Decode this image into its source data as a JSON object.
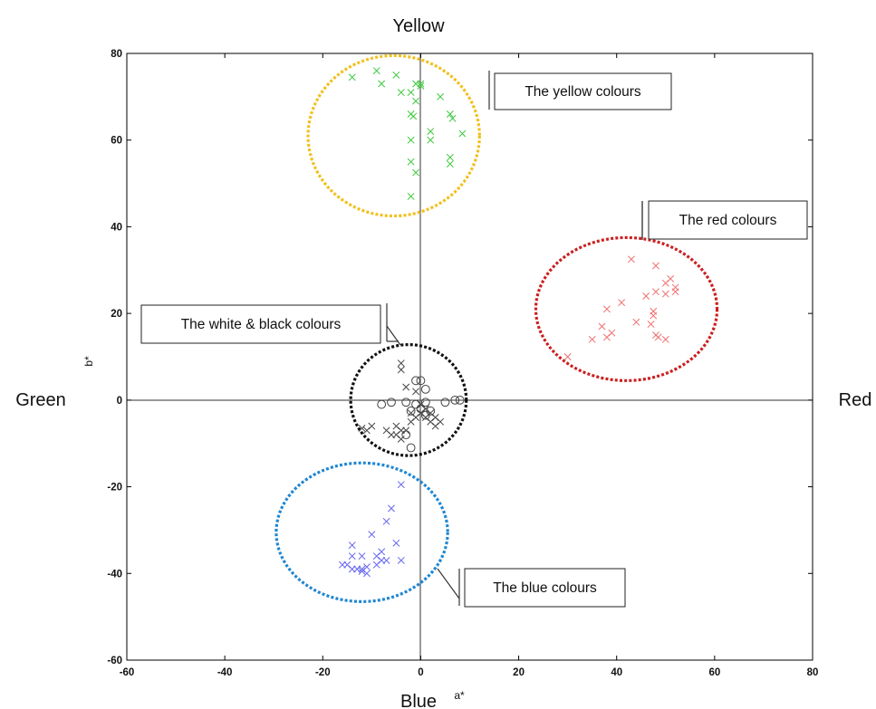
{
  "chart_data": {
    "type": "scatter",
    "xlabel": "a*",
    "ylabel": "b*",
    "xlim": [
      -60,
      80
    ],
    "ylim": [
      -60,
      80
    ],
    "x_ticks": [
      -60,
      -40,
      -20,
      0,
      20,
      40,
      60,
      80
    ],
    "y_ticks": [
      -60,
      -40,
      -20,
      0,
      20,
      40,
      60,
      80
    ],
    "grid": false,
    "color_direction_labels": {
      "top": "Yellow",
      "bottom": "Blue",
      "left": "Green",
      "right": "Red"
    },
    "series": [
      {
        "marker": "x",
        "color": "#3cc83c",
        "points": [
          [
            -14,
            74.5
          ],
          [
            -9,
            76
          ],
          [
            -8,
            73
          ],
          [
            -5,
            75
          ],
          [
            -4,
            71
          ],
          [
            -2,
            71
          ],
          [
            -1,
            73
          ],
          [
            0,
            72.5
          ],
          [
            0,
            73
          ],
          [
            -1,
            69
          ],
          [
            -2,
            66
          ],
          [
            -1.5,
            65.5
          ],
          [
            -2,
            60
          ],
          [
            6,
            66
          ],
          [
            6.5,
            65
          ],
          [
            4,
            70
          ],
          [
            2,
            62
          ],
          [
            2,
            60
          ],
          [
            8.5,
            61.5
          ],
          [
            6,
            56
          ],
          [
            6,
            54.5
          ],
          [
            -2,
            55
          ],
          [
            -1,
            52.5
          ],
          [
            -2,
            47
          ]
        ]
      },
      {
        "marker": "x",
        "color": "#f07070",
        "points": [
          [
            43,
            32.5
          ],
          [
            48,
            31
          ],
          [
            51,
            28
          ],
          [
            52,
            26
          ],
          [
            52,
            25
          ],
          [
            50,
            27
          ],
          [
            48,
            25
          ],
          [
            46,
            24
          ],
          [
            50,
            24.5
          ],
          [
            41,
            22.5
          ],
          [
            38,
            21
          ],
          [
            47.5,
            20.5
          ],
          [
            47.5,
            19.5
          ],
          [
            44,
            18
          ],
          [
            47,
            17.5
          ],
          [
            37,
            17
          ],
          [
            39,
            15.5
          ],
          [
            48,
            15
          ],
          [
            48.5,
            14.5
          ],
          [
            50,
            14
          ],
          [
            35,
            14
          ],
          [
            38,
            14.5
          ],
          [
            30,
            10
          ]
        ]
      },
      {
        "marker": "x",
        "color": "#6666ee",
        "points": [
          [
            -4,
            -19.5
          ],
          [
            -6,
            -25
          ],
          [
            -7,
            -28
          ],
          [
            -10,
            -31
          ],
          [
            -5,
            -33
          ],
          [
            -14,
            -33.5
          ],
          [
            -14,
            -36
          ],
          [
            -12,
            -36
          ],
          [
            -8,
            -35
          ],
          [
            -9,
            -36
          ],
          [
            -8,
            -37
          ],
          [
            -9,
            -38
          ],
          [
            -7,
            -37
          ],
          [
            -4,
            -37
          ],
          [
            -11,
            -38.5
          ],
          [
            -12,
            -39
          ],
          [
            -13,
            -39
          ],
          [
            -14,
            -39
          ],
          [
            -15,
            -38
          ],
          [
            -11,
            -40
          ],
          [
            -12,
            -39.5
          ],
          [
            -16,
            -38
          ]
        ]
      },
      {
        "marker": "x",
        "color": "#444444",
        "points": [
          [
            -4,
            8.5
          ],
          [
            -4,
            7
          ],
          [
            -3,
            3
          ],
          [
            -1,
            2
          ],
          [
            -5,
            -6
          ],
          [
            -4,
            -7
          ],
          [
            -5,
            -8
          ],
          [
            -4,
            -9
          ],
          [
            -3,
            -7
          ],
          [
            -2,
            -5
          ],
          [
            -1,
            -4
          ],
          [
            0,
            -3
          ],
          [
            1,
            -2
          ],
          [
            2,
            -3
          ],
          [
            3,
            -4
          ],
          [
            4,
            -5
          ],
          [
            3,
            -6
          ],
          [
            -10,
            -6
          ],
          [
            -12,
            -6.5
          ],
          [
            -7,
            -7
          ],
          [
            -6,
            -8
          ],
          [
            -11,
            -7
          ],
          [
            0,
            -1
          ],
          [
            1,
            -4
          ],
          [
            2,
            -5
          ],
          [
            -2,
            -3
          ]
        ]
      },
      {
        "marker": "o",
        "color": "#444444",
        "points": [
          [
            -1,
            4.5
          ],
          [
            0,
            4.5
          ],
          [
            1,
            2.5
          ],
          [
            -8,
            -1
          ],
          [
            -6,
            -0.5
          ],
          [
            -3,
            -0.5
          ],
          [
            -1,
            -1
          ],
          [
            1,
            -0.5
          ],
          [
            5,
            -0.5
          ],
          [
            7,
            0
          ],
          [
            8,
            0
          ],
          [
            -2,
            -2.5
          ],
          [
            0,
            -2
          ],
          [
            2,
            -2.5
          ],
          [
            1,
            -3.5
          ],
          [
            -3,
            -8
          ],
          [
            -2,
            -11
          ]
        ]
      }
    ],
    "clusters": [
      {
        "label": "The yellow colours",
        "color": "#f2c01d",
        "center": [
          -5.5,
          61
        ],
        "radii": [
          17.5,
          18.5
        ]
      },
      {
        "label": "The red colours",
        "color": "#cc1f1f",
        "center": [
          42,
          21
        ],
        "radii": [
          18.5,
          16.5
        ]
      },
      {
        "label": "The white & black colours",
        "color": "#111111",
        "center": [
          -2.5,
          0
        ],
        "radii": [
          11.8,
          12.8
        ]
      },
      {
        "label": "The blue colours",
        "color": "#1f86d2",
        "center": [
          -12,
          -30.5
        ],
        "radii": [
          17.5,
          16
        ]
      }
    ]
  }
}
